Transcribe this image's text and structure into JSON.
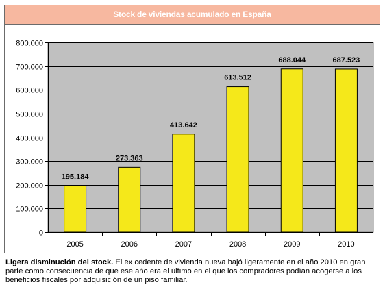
{
  "header": {
    "title": "Stock de viviendas acumulado en España"
  },
  "caption": {
    "lead": "Ligera disminución del stock.",
    "body": " El ex cedente de vivienda nueva bajó ligeramente en el año 2010 en gran parte como consecuencia de que ese año era el último en el que los compradores podían acogerse a los beneficios fiscales por adquisición de un piso familiar."
  },
  "colors": {
    "bar": "#f5e81a",
    "plot_bg": "#c0c0c0",
    "header": "#f7b8a0"
  },
  "chart_data": {
    "type": "bar",
    "title": "Stock de viviendas acumulado en España",
    "xlabel": "",
    "ylabel": "",
    "categories": [
      "2005",
      "2006",
      "2007",
      "2008",
      "2009",
      "2010"
    ],
    "values": [
      195184,
      273363,
      413642,
      613512,
      688044,
      687523
    ],
    "value_labels": [
      "195.184",
      "273.363",
      "413.642",
      "613.512",
      "688.044",
      "687.523"
    ],
    "ylim": [
      0,
      800000
    ],
    "yticks": [
      0,
      100000,
      200000,
      300000,
      400000,
      500000,
      600000,
      700000,
      800000
    ],
    "ytick_labels": [
      "0",
      "100.000",
      "200.000",
      "300.000",
      "400.000",
      "500.000",
      "600.000",
      "700.000",
      "800.000"
    ],
    "grid": true,
    "legend": "none"
  }
}
